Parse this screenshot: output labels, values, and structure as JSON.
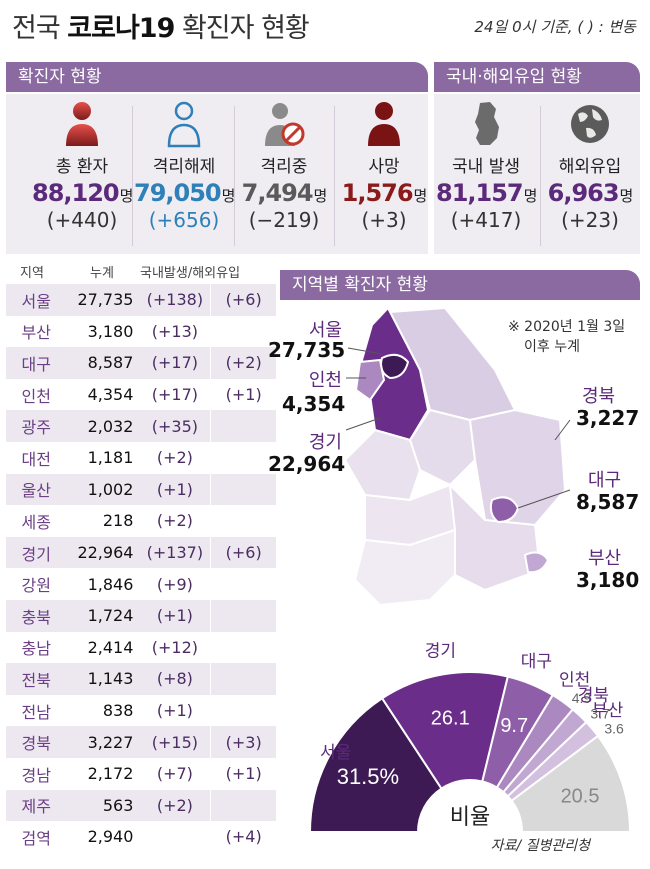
{
  "header": {
    "title_a": "전국",
    "title_b": "코로나19",
    "title_c": "확진자 현황",
    "date_note": "24일 0시 기준, ( ) : 변동"
  },
  "status": {
    "banner": "확진자 현황",
    "unit": "명",
    "items": [
      {
        "label": "총 환자",
        "value": "88,120",
        "change": "(+440)",
        "color": "#5c2a7a",
        "icon": "person-icon"
      },
      {
        "label": "격리해제",
        "value": "79,050",
        "change": "(+656)",
        "color": "#2f7fb9",
        "icon": "person-outline-icon"
      },
      {
        "label": "격리중",
        "value": "7,494",
        "change": "(−219)",
        "color": "#5a5a5a",
        "icon": "person-quarantine-icon"
      },
      {
        "label": "사망",
        "value": "1,576",
        "change": "(+3)",
        "color": "#8b1a1a",
        "icon": "person-deceased-icon"
      }
    ]
  },
  "origin": {
    "banner": "국내·해외유입 현황",
    "items": [
      {
        "label": "국내 발생",
        "value": "81,157",
        "change": "(+417)",
        "color": "#5c2a7a",
        "icon": "korea-map-icon"
      },
      {
        "label": "해외유입",
        "value": "6,963",
        "change": "(+23)",
        "color": "#5c2a7a",
        "icon": "globe-icon"
      }
    ]
  },
  "regions": {
    "headers": {
      "region": "지역",
      "total": "누계",
      "breakdown": "국내발생/해외유입"
    },
    "rows": [
      {
        "name": "서울",
        "total": "27,735",
        "domestic": "(+138)",
        "imported": "(+6)"
      },
      {
        "name": "부산",
        "total": "3,180",
        "domestic": "(+13)",
        "imported": ""
      },
      {
        "name": "대구",
        "total": "8,587",
        "domestic": "(+17)",
        "imported": "(+2)"
      },
      {
        "name": "인천",
        "total": "4,354",
        "domestic": "(+17)",
        "imported": "(+1)"
      },
      {
        "name": "광주",
        "total": "2,032",
        "domestic": "(+35)",
        "imported": ""
      },
      {
        "name": "대전",
        "total": "1,181",
        "domestic": "(+2)",
        "imported": ""
      },
      {
        "name": "울산",
        "total": "1,002",
        "domestic": "(+1)",
        "imported": ""
      },
      {
        "name": "세종",
        "total": "218",
        "domestic": "(+2)",
        "imported": ""
      },
      {
        "name": "경기",
        "total": "22,964",
        "domestic": "(+137)",
        "imported": "(+6)"
      },
      {
        "name": "강원",
        "total": "1,846",
        "domestic": "(+9)",
        "imported": ""
      },
      {
        "name": "충북",
        "total": "1,724",
        "domestic": "(+1)",
        "imported": ""
      },
      {
        "name": "충남",
        "total": "2,414",
        "domestic": "(+12)",
        "imported": ""
      },
      {
        "name": "전북",
        "total": "1,143",
        "domestic": "(+8)",
        "imported": ""
      },
      {
        "name": "전남",
        "total": "838",
        "domestic": "(+1)",
        "imported": ""
      },
      {
        "name": "경북",
        "total": "3,227",
        "domestic": "(+15)",
        "imported": "(+3)"
      },
      {
        "name": "경남",
        "total": "2,172",
        "domestic": "(+7)",
        "imported": "(+1)"
      },
      {
        "name": "제주",
        "total": "563",
        "domestic": "(+2)",
        "imported": ""
      },
      {
        "name": "검역",
        "total": "2,940",
        "domestic": "",
        "imported": "(+4)"
      }
    ]
  },
  "map": {
    "banner": "지역별 확진자 현황",
    "note_line1": "※ 2020년 1월 3일",
    "note_line2": "이후 누계",
    "labels": [
      {
        "name": "서울",
        "value": "27,735"
      },
      {
        "name": "인천",
        "value": "4,354"
      },
      {
        "name": "경기",
        "value": "22,964"
      },
      {
        "name": "경북",
        "value": "3,227"
      },
      {
        "name": "대구",
        "value": "8,587"
      },
      {
        "name": "부산",
        "value": "3,180"
      }
    ]
  },
  "chart_data": {
    "type": "pie",
    "center_label": "비율",
    "categories": [
      "서울",
      "경기",
      "대구",
      "인천",
      "경북",
      "부산",
      ""
    ],
    "values": [
      31.5,
      26.1,
      9.7,
      4.9,
      3.7,
      3.6,
      20.5
    ],
    "value_labels": [
      "31.5%",
      "26.1",
      "9.7",
      "4.9",
      "3.7",
      "3.6",
      "20.5"
    ],
    "colors": [
      "#3e1a55",
      "#6b2d8a",
      "#8e5fa8",
      "#ab89c0",
      "#c1a8d2",
      "#d3c0df",
      "#d9d9d9"
    ]
  },
  "footer": {
    "source": "자료/ 질병관리청"
  }
}
